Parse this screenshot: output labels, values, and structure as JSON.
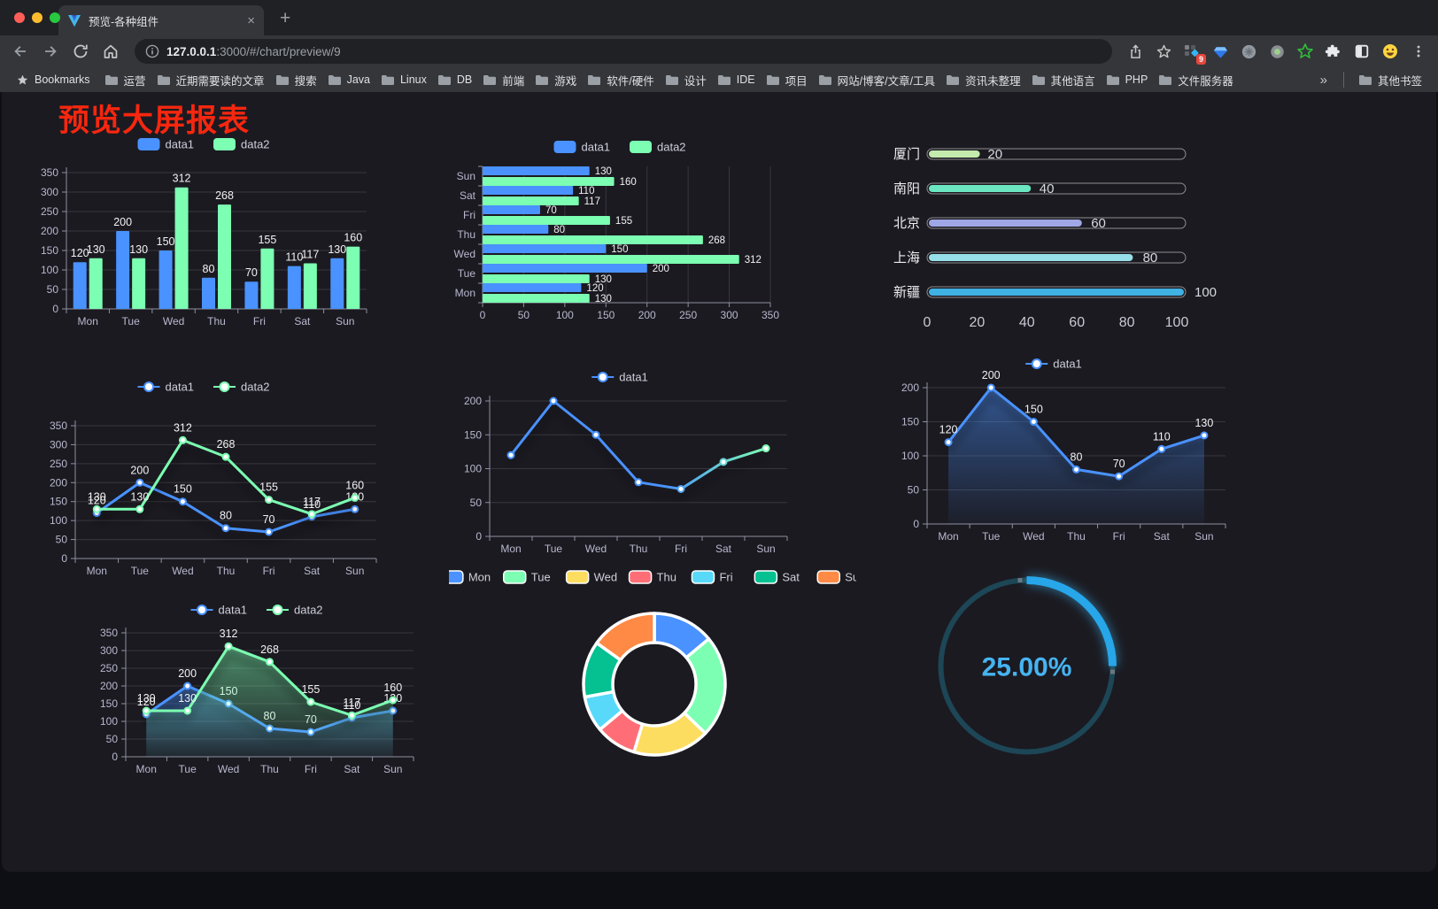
{
  "browser": {
    "traffic_lights": [
      "#ff5f57",
      "#febc2e",
      "#28c840"
    ],
    "tab": {
      "title": "预览-各种组件",
      "close_glyph": "×"
    },
    "new_tab_glyph": "+",
    "url": {
      "host": "127.0.0.1",
      "rest": ":3000/#/chart/preview/9"
    },
    "extensions_badge": "9",
    "bookmarks_bar": {
      "label": "Bookmarks",
      "folders": [
        "运营",
        "近期需要读的文章",
        "搜索",
        "Java",
        "Linux",
        "DB",
        "前端",
        "游戏",
        "软件/硬件",
        "设计",
        "IDE",
        "项目",
        "网站/博客/文章/工具",
        "资讯未整理",
        "其他语言",
        "PHP",
        "文件服务器"
      ],
      "overflow": "»",
      "other": "其他书签"
    }
  },
  "page": {
    "title": "预览大屏报表",
    "title_color": "#f6270f"
  },
  "chart_data": [
    {
      "id": "bar-grouped",
      "type": "bar",
      "legend_position": "top",
      "grid": true,
      "categories": [
        "Mon",
        "Tue",
        "Wed",
        "Thu",
        "Fri",
        "Sat",
        "Sun"
      ],
      "series": [
        {
          "name": "data1",
          "color": "#4992ff",
          "values": [
            120,
            200,
            150,
            80,
            70,
            110,
            130
          ]
        },
        {
          "name": "data2",
          "color": "#7cffb2",
          "values": [
            130,
            130,
            312,
            268,
            155,
            117,
            160
          ]
        }
      ],
      "ylim": [
        0,
        350
      ],
      "ytick_step": 50,
      "value_labels": true
    },
    {
      "id": "bar-horizontal",
      "type": "bar",
      "orientation": "horizontal",
      "legend_position": "top",
      "grid": true,
      "categories": [
        "Mon",
        "Tue",
        "Wed",
        "Thu",
        "Fri",
        "Sat",
        "Sun"
      ],
      "display_order_top_to_bottom": [
        "Sun",
        "Sat",
        "Fri",
        "Thu",
        "Wed",
        "Tue",
        "Mon"
      ],
      "series": [
        {
          "name": "data1",
          "color": "#4992ff",
          "values": [
            120,
            200,
            150,
            80,
            70,
            110,
            130
          ]
        },
        {
          "name": "data2",
          "color": "#7cffb2",
          "values": [
            130,
            130,
            312,
            268,
            155,
            117,
            160
          ]
        }
      ],
      "xlim": [
        0,
        350
      ],
      "xtick_step": 50,
      "value_labels": true
    },
    {
      "id": "progress-bars",
      "type": "bar",
      "subtype": "progress",
      "items": [
        {
          "label": "厦门",
          "value": 20,
          "color": "#c4ebad"
        },
        {
          "label": "南阳",
          "value": 40,
          "color": "#6be6c1"
        },
        {
          "label": "北京",
          "value": 60,
          "color": "#a0a7e6"
        },
        {
          "label": "上海",
          "value": 80,
          "color": "#96dee8"
        },
        {
          "label": "新疆",
          "value": 100,
          "color": "#3fb1e3"
        }
      ],
      "xlim": [
        0,
        100
      ],
      "xticks": [
        0,
        20,
        40,
        60,
        80,
        100
      ],
      "value_labels": true
    },
    {
      "id": "line-two-series",
      "type": "line",
      "legend_position": "top",
      "grid": true,
      "categories": [
        "Mon",
        "Tue",
        "Wed",
        "Thu",
        "Fri",
        "Sat",
        "Sun"
      ],
      "series": [
        {
          "name": "data1",
          "color": "#4992ff",
          "values": [
            120,
            200,
            150,
            80,
            70,
            110,
            130
          ]
        },
        {
          "name": "data2",
          "color": "#7cffb2",
          "values": [
            130,
            130,
            312,
            268,
            155,
            117,
            160
          ]
        }
      ],
      "ylim": [
        0,
        350
      ],
      "ytick_step": 50,
      "value_labels": true
    },
    {
      "id": "line-gradient",
      "type": "line",
      "legend_position": "top",
      "grid": true,
      "categories": [
        "Mon",
        "Tue",
        "Wed",
        "Thu",
        "Fri",
        "Sat",
        "Sun"
      ],
      "series": [
        {
          "name": "data1",
          "gradient": [
            "#4992ff",
            "#7cffb2"
          ],
          "values": [
            120,
            200,
            150,
            80,
            70,
            110,
            130
          ]
        }
      ],
      "ylim": [
        0,
        200
      ],
      "ytick_step": 50,
      "value_labels": false
    },
    {
      "id": "area-single",
      "type": "area",
      "legend_position": "top",
      "grid": true,
      "categories": [
        "Mon",
        "Tue",
        "Wed",
        "Thu",
        "Fri",
        "Sat",
        "Sun"
      ],
      "series": [
        {
          "name": "data1",
          "color": "#4992ff",
          "area": true,
          "values": [
            120,
            200,
            150,
            80,
            70,
            110,
            130
          ]
        }
      ],
      "ylim": [
        0,
        200
      ],
      "ytick_step": 50,
      "value_labels": true
    },
    {
      "id": "area-two-series",
      "type": "area",
      "legend_position": "top",
      "grid": true,
      "categories": [
        "Mon",
        "Tue",
        "Wed",
        "Thu",
        "Fri",
        "Sat",
        "Sun"
      ],
      "series": [
        {
          "name": "data1",
          "color": "#4992ff",
          "area": true,
          "values": [
            120,
            200,
            150,
            80,
            70,
            110,
            130
          ]
        },
        {
          "name": "data2",
          "color": "#7cffb2",
          "area": true,
          "values": [
            130,
            130,
            312,
            268,
            155,
            117,
            160
          ]
        }
      ],
      "ylim": [
        0,
        350
      ],
      "ytick_step": 50,
      "value_labels": true
    },
    {
      "id": "donut",
      "type": "pie",
      "legend_position": "top",
      "labels": [
        "Mon",
        "Tue",
        "Wed",
        "Thu",
        "Fri",
        "Sat",
        "Sun"
      ],
      "values": [
        120,
        200,
        150,
        80,
        70,
        110,
        130
      ],
      "colors": [
        "#4992ff",
        "#7cffb2",
        "#fddd60",
        "#ff6e76",
        "#58d9f9",
        "#05c091",
        "#ff8a45"
      ],
      "border_color": "#ffffff"
    },
    {
      "id": "gauge",
      "type": "gauge",
      "value": 25,
      "max": 100,
      "display": "25.00%",
      "progress_color": "#27a6e9",
      "track_color": "#1d4656",
      "text_color": "#46b4f1"
    }
  ]
}
